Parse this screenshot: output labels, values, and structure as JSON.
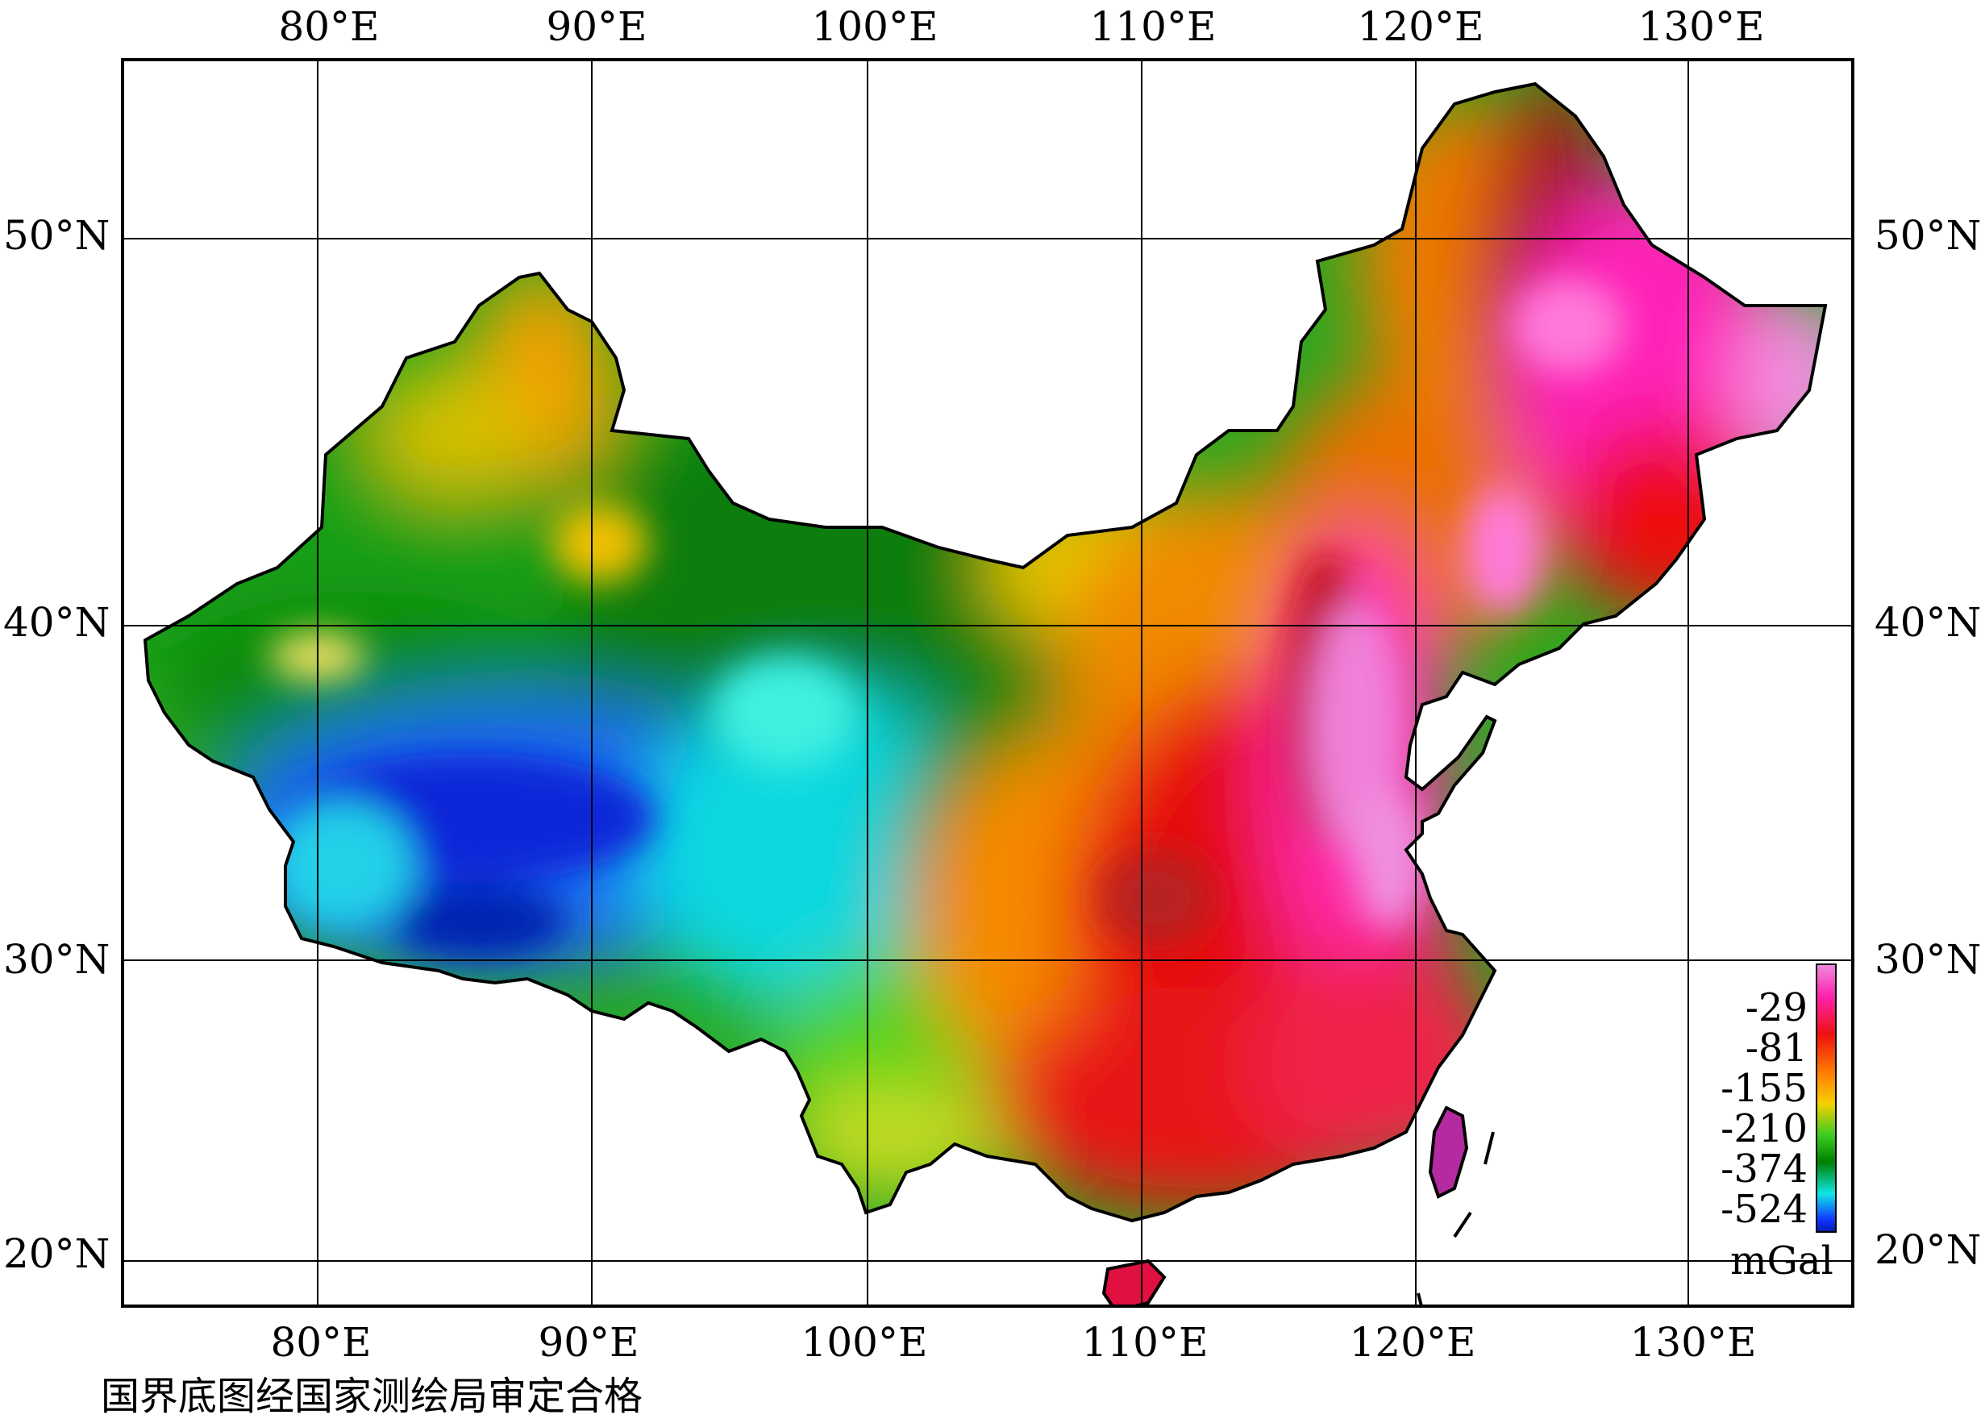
{
  "map": {
    "longitude_labels": [
      "80°E",
      "90°E",
      "100°E",
      "110°E",
      "120°E",
      "130°E"
    ],
    "latitude_labels": [
      "50°N",
      "40°N",
      "30°N",
      "20°N"
    ],
    "graticule": {
      "longitudes": [
        80,
        90,
        100,
        110,
        120,
        130
      ],
      "latitudes": [
        50,
        40,
        30,
        20
      ]
    }
  },
  "legend": {
    "ticks": [
      "-29",
      "-81",
      "-155",
      "-210",
      "-374",
      "-524"
    ],
    "unit": "mGal",
    "colors": [
      "#ee88dd",
      "#ff22aa",
      "#ee1111",
      "#ff7a00",
      "#f5d000",
      "#3ccc22",
      "#008000",
      "#10e6e6",
      "#1030ff"
    ]
  },
  "footer": {
    "approval_note": "国界底图经国家测绘局审定合格"
  }
}
